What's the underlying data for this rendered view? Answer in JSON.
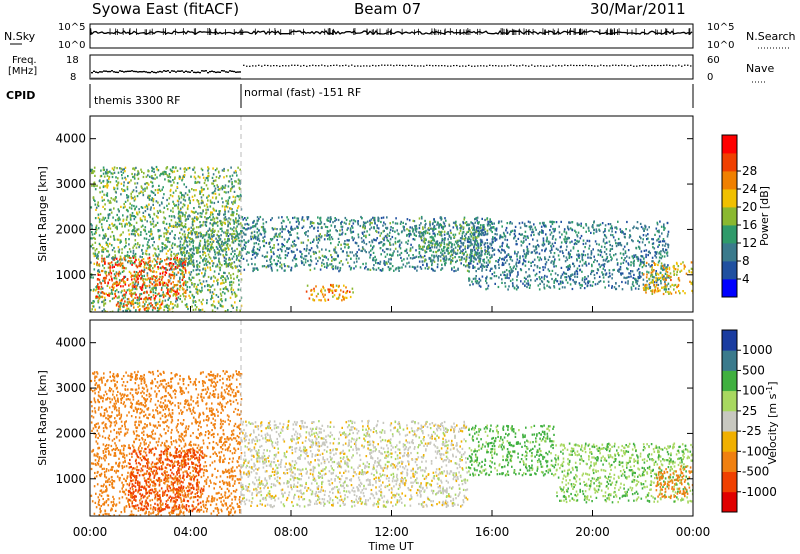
{
  "header": {
    "station": "Syowa East (fitACF)",
    "beam": "Beam 07",
    "date": "30/Mar/2011"
  },
  "top_panels": {
    "nsky_label": "N.Sky",
    "nsky_hi": "10^5",
    "nsky_lo": "10^0",
    "nsearch_label": "N.Search",
    "nsearch_hi": "10^5",
    "nsearch_lo": "10^0",
    "freq_label_1": "Freq.",
    "freq_label_2": "[MHz]",
    "freq_hi": "18",
    "freq_lo": "8",
    "nave_label": "Nave",
    "nave_hi": "60",
    "nave_lo": "0",
    "cpid_label": "CPID",
    "cpid_1": "themis 3300 RF",
    "cpid_2": "normal (fast) -151 RF"
  },
  "colors": {
    "power_scale": [
      "#0000ff",
      "#2050a0",
      "#3a7a8c",
      "#2f9a6a",
      "#8ab830",
      "#f0c000",
      "#f08000",
      "#f04000",
      "#ff0000"
    ],
    "velocity_scale": [
      "#e00000",
      "#f04000",
      "#f08010",
      "#f0b000",
      "#c8c8c0",
      "#a8d860",
      "#40b040",
      "#3a7a8c",
      "#1a3ca0"
    ],
    "grey": "#c6c6be"
  },
  "chart_data": [
    {
      "type": "heatmap",
      "panel": "power",
      "ylabel": "Slant Range [km]",
      "ylim": [
        180,
        4500
      ],
      "yticks": [
        "1000",
        "2000",
        "3000",
        "4000"
      ],
      "xlim": [
        0,
        24
      ],
      "colorbar_label": "Power [dB]",
      "colorbar_ticks": [
        "4",
        "8",
        "12",
        "16",
        "20",
        "24",
        "28"
      ],
      "colorbar_range": [
        0,
        32
      ],
      "features": [
        {
          "t": [
            0.0,
            6.0
          ],
          "range": [
            200,
            3400
          ],
          "value": 14
        },
        {
          "t": [
            0.2,
            3.8
          ],
          "range": [
            500,
            1400
          ],
          "value": 26
        },
        {
          "t": [
            1.0,
            3.0
          ],
          "range": [
            250,
            500
          ],
          "value": 24
        },
        {
          "t": [
            3.5,
            6.0
          ],
          "range": [
            1200,
            2400
          ],
          "value": 12
        },
        {
          "t": [
            6.0,
            16.0
          ],
          "range": [
            1100,
            2300
          ],
          "value": 10
        },
        {
          "t": [
            8.5,
            10.5
          ],
          "range": [
            450,
            800
          ],
          "value": 22
        },
        {
          "t": [
            13.0,
            15.5
          ],
          "range": [
            1300,
            2200
          ],
          "value": 12
        },
        {
          "t": [
            15.0,
            23.0
          ],
          "range": [
            700,
            2200
          ],
          "value": 9
        },
        {
          "t": [
            22.0,
            24.0
          ],
          "range": [
            600,
            1300
          ],
          "value": 20
        }
      ]
    },
    {
      "type": "heatmap",
      "panel": "velocity",
      "ylabel": "Slant Range [km]",
      "xlabel": "Time UT",
      "ylim": [
        180,
        4500
      ],
      "yticks": [
        "1000",
        "2000",
        "3000",
        "4000"
      ],
      "xlim": [
        0,
        24
      ],
      "xticks": [
        "00:00",
        "04:00",
        "08:00",
        "12:00",
        "16:00",
        "20:00",
        "00:00"
      ],
      "colorbar_label": "Velocity [m s",
      "colorbar_label_sup": "-1",
      "colorbar_label_end": "]",
      "colorbar_ticks": [
        "-1000",
        "-500",
        "-100",
        "-25",
        "25",
        "100",
        "500",
        "1000"
      ],
      "features": [
        {
          "t": [
            0.0,
            6.0
          ],
          "range": [
            200,
            3400
          ],
          "value": -200
        },
        {
          "t": [
            1.5,
            4.5
          ],
          "range": [
            300,
            1700
          ],
          "value": -600
        },
        {
          "t": [
            6.0,
            15.0
          ],
          "range": [
            400,
            2300
          ],
          "value": 0
        },
        {
          "t": [
            15.0,
            18.5
          ],
          "range": [
            1100,
            2200
          ],
          "value": 120
        },
        {
          "t": [
            18.5,
            24.0
          ],
          "range": [
            500,
            1800
          ],
          "value": 90
        },
        {
          "t": [
            22.5,
            24.0
          ],
          "range": [
            600,
            1300
          ],
          "value": -300
        }
      ]
    }
  ]
}
